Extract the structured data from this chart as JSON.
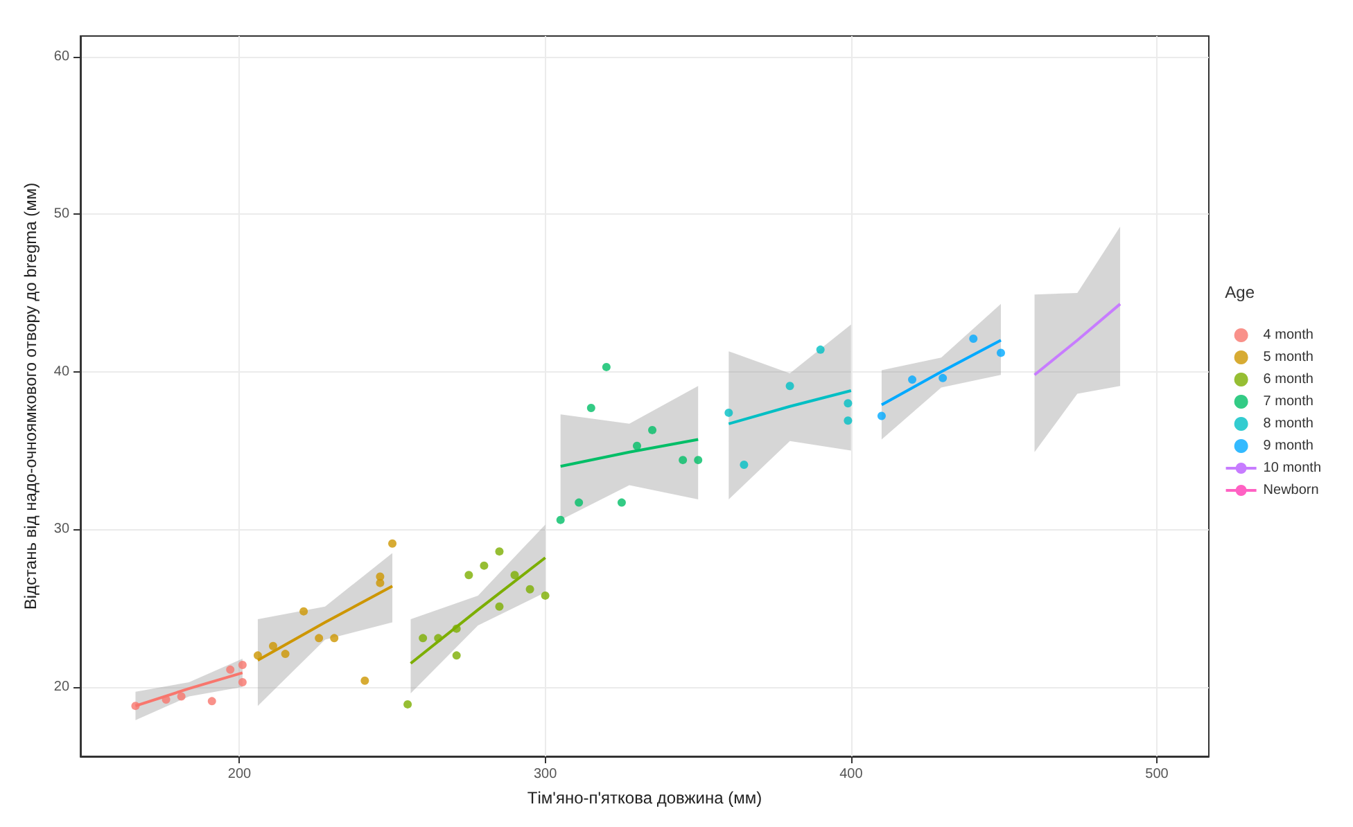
{
  "chart_data": {
    "type": "scatter",
    "xlabel": "Тім'яно-п'яткова довжина (мм)",
    "ylabel": "Відстань від надо-очноямкового отвору до bregma (мм)",
    "legend_title": "Age",
    "legend": "right",
    "grid": true,
    "marker": "circle",
    "xlim": [
      148,
      517
    ],
    "ylim": [
      15.6,
      61.3
    ],
    "xticks": [
      200,
      300,
      400,
      500
    ],
    "yticks": [
      20,
      30,
      40,
      50,
      60
    ],
    "series": [
      {
        "name": "4 month",
        "color": "#F8766D",
        "x": [
          166,
          176,
          181,
          191,
          197,
          201,
          201
        ],
        "values": [
          18.8,
          19.2,
          19.4,
          19.1,
          21.1,
          21.4,
          20.3
        ]
      },
      {
        "color": "#F8766D",
        "type": "line",
        "marker": "none",
        "x": [
          166,
          183.5,
          201
        ],
        "values": [
          18.8,
          19.9,
          20.9
        ],
        "lower": [
          17.9,
          19.4,
          20.0
        ],
        "upper": [
          19.7,
          20.3,
          21.8
        ]
      },
      {
        "name": "5 month",
        "color": "#CD9600",
        "x": [
          206,
          211,
          215,
          221,
          226,
          231,
          241,
          246,
          246,
          250
        ],
        "values": [
          22.0,
          22.6,
          22.1,
          24.8,
          23.1,
          23.1,
          20.4,
          27.0,
          26.6,
          29.1
        ]
      },
      {
        "color": "#CD9600",
        "type": "line",
        "marker": "none",
        "x": [
          206,
          228,
          250
        ],
        "values": [
          21.7,
          24.1,
          26.4
        ],
        "lower": [
          18.8,
          23.0,
          24.1
        ],
        "upper": [
          24.3,
          25.1,
          28.5
        ]
      },
      {
        "name": "6 month",
        "color": "#7CAE00",
        "x": [
          255,
          260,
          265,
          271,
          271,
          275,
          280,
          285,
          285,
          290,
          295,
          300
        ],
        "values": [
          18.9,
          23.1,
          23.1,
          22.0,
          23.7,
          27.1,
          27.7,
          28.6,
          25.1,
          27.1,
          26.2,
          25.8
        ]
      },
      {
        "color": "#7CAE00",
        "type": "line",
        "marker": "none",
        "x": [
          256,
          278,
          300
        ],
        "values": [
          21.5,
          24.9,
          28.2
        ],
        "lower": [
          19.6,
          23.9,
          26.0
        ],
        "upper": [
          24.3,
          25.8,
          30.3
        ]
      },
      {
        "name": "7 month",
        "color": "#00BE67",
        "x": [
          305,
          311,
          315,
          320,
          325,
          330,
          335,
          345,
          350
        ],
        "values": [
          30.6,
          31.7,
          37.7,
          40.3,
          31.7,
          35.3,
          36.3,
          34.4,
          34.4
        ]
      },
      {
        "color": "#00BE67",
        "type": "line",
        "marker": "none",
        "x": [
          305,
          327.5,
          350
        ],
        "values": [
          34.0,
          34.9,
          35.7
        ],
        "lower": [
          30.6,
          32.8,
          31.9
        ],
        "upper": [
          37.3,
          36.7,
          39.1
        ]
      },
      {
        "name": "8 month",
        "color": "#00BFC4",
        "x": [
          360,
          365,
          380,
          390,
          399,
          399
        ],
        "values": [
          37.4,
          34.1,
          39.1,
          41.4,
          38.0,
          36.9
        ]
      },
      {
        "color": "#00BFC4",
        "type": "line",
        "marker": "none",
        "x": [
          360,
          380,
          400
        ],
        "values": [
          36.7,
          37.8,
          38.8
        ],
        "lower": [
          31.9,
          35.6,
          35.0
        ],
        "upper": [
          41.3,
          39.9,
          43.0
        ]
      },
      {
        "name": "9 month",
        "color": "#00A9FF",
        "x": [
          410,
          420,
          430,
          440,
          449
        ],
        "values": [
          37.2,
          39.5,
          39.6,
          42.1,
          41.2
        ]
      },
      {
        "color": "#00A9FF",
        "type": "line",
        "marker": "none",
        "x": [
          410,
          429.5,
          449
        ],
        "values": [
          37.9,
          40.0,
          42.0
        ],
        "lower": [
          35.7,
          39.0,
          39.8
        ],
        "upper": [
          40.1,
          40.9,
          44.3
        ]
      },
      {
        "name": "10 month",
        "color": "#C77CFF",
        "type": "line",
        "marker": "none",
        "x": [
          460,
          474,
          488
        ],
        "values": [
          39.8,
          42.0,
          44.3
        ],
        "lower": [
          34.9,
          38.6,
          39.1
        ],
        "upper": [
          44.9,
          45.0,
          49.2
        ]
      },
      {
        "name": "Newborn",
        "color": "#FF61C3",
        "type": "line",
        "marker": "none"
      }
    ]
  }
}
